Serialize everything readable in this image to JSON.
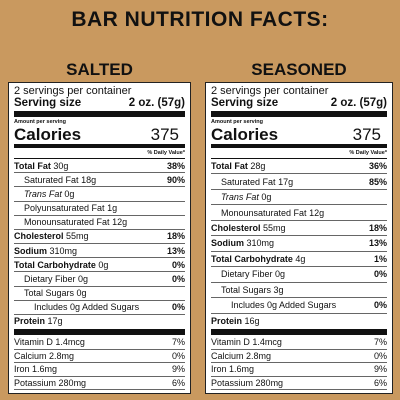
{
  "title": "BAR NUTRITION FACTS:",
  "panels": [
    {
      "heading": "SALTED",
      "servings": "2 servings per container",
      "serving_size_label": "Serving size",
      "serving_size": "2 oz. (57g)",
      "amount_label": "Amount per serving",
      "calories_label": "Calories",
      "calories": 375,
      "daily_value_label": "% Daily Value*",
      "nutrients": [
        {
          "name": "Total Fat",
          "amount": "30g",
          "dv": "38%"
        },
        {
          "name": "Saturated Fat",
          "amount": "18g",
          "dv": "90%"
        },
        {
          "name": "Trans Fat",
          "amount": "0g"
        },
        {
          "name": "Polyunsaturated Fat",
          "amount": "1g"
        },
        {
          "name": "Monounsaturated Fat",
          "amount": "12g"
        },
        {
          "name": "Cholesterol",
          "amount": "55mg",
          "dv": "18%"
        },
        {
          "name": "Sodium",
          "amount": "310mg",
          "dv": "13%"
        },
        {
          "name": "Total Carbohydrate",
          "amount": "0g",
          "dv": "0%"
        },
        {
          "name": "Dietary Fiber",
          "amount": "0g",
          "dv": "0%"
        },
        {
          "name": "Total Sugars",
          "amount": "0g"
        },
        {
          "name": "Includes 0g Added Sugars",
          "dv": "0%"
        },
        {
          "name": "Protein",
          "amount": "17g"
        }
      ],
      "vitamins": [
        {
          "name": "Vitamin D",
          "amount": "1.4mcg",
          "dv": "7%"
        },
        {
          "name": "Calcium",
          "amount": "2.8mg",
          "dv": "0%"
        },
        {
          "name": "Iron",
          "amount": "1.6mg",
          "dv": "9%"
        },
        {
          "name": "Potassium",
          "amount": "280mg",
          "dv": "6%"
        }
      ]
    },
    {
      "heading": "SEASONED",
      "servings": "2 servings per container",
      "serving_size_label": "Serving size",
      "serving_size": "2 oz. (57g)",
      "amount_label": "Amount per serving",
      "calories_label": "Calories",
      "calories": 375,
      "daily_value_label": "% Daily Value*",
      "nutrients": [
        {
          "name": "Total Fat",
          "amount": "28g",
          "dv": "36%"
        },
        {
          "name": "Saturated Fat",
          "amount": "17g",
          "dv": "85%"
        },
        {
          "name": "Trans Fat",
          "amount": "0g"
        },
        {
          "name": "Monounsaturated Fat",
          "amount": "12g"
        },
        {
          "name": "Cholesterol",
          "amount": "55mg",
          "dv": "18%"
        },
        {
          "name": "Sodium",
          "amount": "310mg",
          "dv": "13%"
        },
        {
          "name": "Total Carbohydrate",
          "amount": "4g",
          "dv": "1%"
        },
        {
          "name": "Dietary Fiber",
          "amount": "0g",
          "dv": "0%"
        },
        {
          "name": "Total Sugars",
          "amount": "3g"
        },
        {
          "name": "Includes 0g Added Sugars",
          "dv": "0%"
        },
        {
          "name": "Protein",
          "amount": "16g"
        }
      ],
      "vitamins": [
        {
          "name": "Vitamin D",
          "amount": "1.4mcg",
          "dv": "7%"
        },
        {
          "name": "Calcium",
          "amount": "2.8mg",
          "dv": "0%"
        },
        {
          "name": "Iron",
          "amount": "1.6mg",
          "dv": "9%"
        },
        {
          "name": "Potassium",
          "amount": "280mg",
          "dv": "6%"
        }
      ]
    }
  ]
}
